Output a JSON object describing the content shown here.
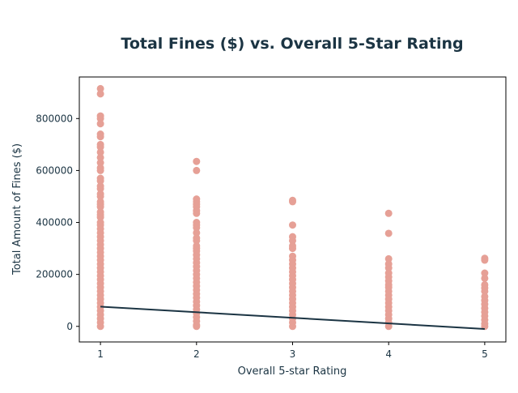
{
  "chart_data": {
    "type": "scatter",
    "title": "Total Fines ($) vs. Overall 5-Star Rating",
    "xlabel": "Overall 5-star Rating",
    "ylabel": "Total Amount of Fines ($)",
    "xlim": [
      0.78,
      5.22
    ],
    "ylim": [
      -60000,
      960000
    ],
    "x_ticks": [
      1,
      2,
      3,
      4,
      5
    ],
    "y_ticks": [
      0,
      200000,
      400000,
      600000,
      800000
    ],
    "grid": false,
    "legend": "none",
    "colors": {
      "points": "#e6a096",
      "trend": "#1b3443",
      "text": "#1b3443"
    },
    "series": [
      {
        "x": 1,
        "y": [
          915000,
          895000,
          810000,
          800000,
          780000,
          740000,
          730000,
          700000,
          690000,
          670000,
          650000,
          630000,
          610000,
          600000,
          570000,
          560000,
          540000,
          530000,
          510000,
          500000,
          480000,
          470000,
          460000,
          440000,
          430000,
          420000,
          400000,
          390000,
          375000,
          360000,
          345000,
          330000,
          315000,
          300000,
          285000,
          270000,
          255000,
          240000,
          225000,
          210000,
          195000,
          180000,
          165000,
          150000,
          135000,
          120000,
          105000,
          90000,
          75000,
          60000,
          45000,
          30000,
          15000,
          0
        ]
      },
      {
        "x": 2,
        "y": [
          635000,
          600000,
          490000,
          480000,
          470000,
          460000,
          445000,
          435000,
          400000,
          390000,
          380000,
          360000,
          340000,
          330000,
          310000,
          300000,
          290000,
          275000,
          260000,
          245000,
          230000,
          215000,
          200000,
          185000,
          170000,
          155000,
          140000,
          125000,
          110000,
          95000,
          80000,
          65000,
          50000,
          35000,
          20000,
          5000,
          0
        ]
      },
      {
        "x": 3,
        "y": [
          485000,
          480000,
          390000,
          345000,
          330000,
          310000,
          300000,
          270000,
          255000,
          240000,
          225000,
          210000,
          195000,
          180000,
          165000,
          150000,
          135000,
          120000,
          105000,
          90000,
          75000,
          60000,
          45000,
          30000,
          15000,
          0
        ]
      },
      {
        "x": 4,
        "y": [
          435000,
          358000,
          260000,
          240000,
          225000,
          205000,
          190000,
          175000,
          160000,
          150000,
          135000,
          120000,
          105000,
          90000,
          75000,
          60000,
          45000,
          30000,
          15000,
          0
        ]
      },
      {
        "x": 5,
        "y": [
          262000,
          255000,
          205000,
          185000,
          160000,
          148000,
          135000,
          115000,
          100000,
          85000,
          70000,
          55000,
          40000,
          25000,
          10000,
          0
        ]
      }
    ],
    "trend_line": {
      "x": [
        1,
        5
      ],
      "y": [
        76000,
        -10000
      ]
    }
  }
}
